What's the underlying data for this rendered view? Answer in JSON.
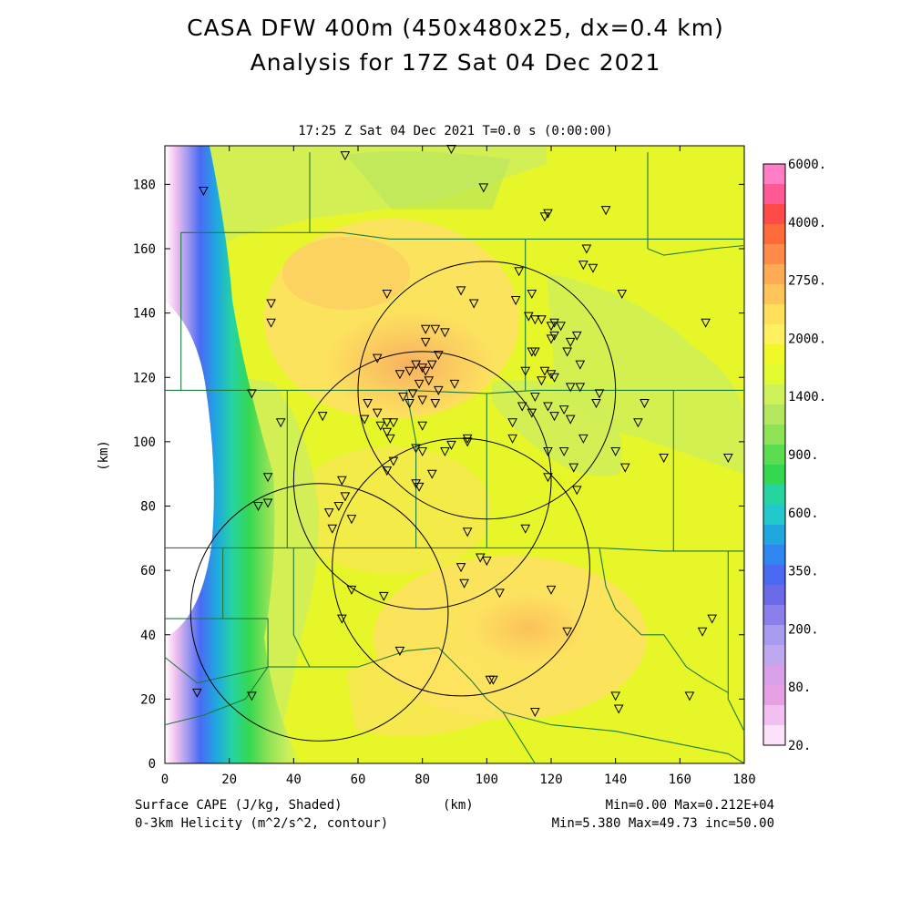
{
  "title_line1": "CASA DFW 400m (450x480x25, dx=0.4 km)",
  "title_line2": "Analysis for 17Z Sat 04 Dec 2021",
  "subtitle": "17:25 Z Sat 04 Dec 2021   T=0.0 s (0:00:00)",
  "footer": {
    "left1": "Surface CAPE (J/kg, Shaded)",
    "left2": "0-3km Helicity (m^2/s^2, contour)",
    "center": "(km)",
    "right1": "Min=0.00 Max=0.212E+04",
    "right2": "Min=5.380 Max=49.73 inc=50.00"
  },
  "chart_data": {
    "type": "heatmap",
    "xlabel": "(km)",
    "ylabel": "(km)",
    "xlim": [
      0,
      180
    ],
    "ylim": [
      0,
      192
    ],
    "x_ticks": [
      "0",
      "20",
      "40",
      "60",
      "80",
      "100",
      "120",
      "140",
      "160",
      "180"
    ],
    "y_ticks": [
      "0",
      "20",
      "40",
      "60",
      "80",
      "100",
      "120",
      "140",
      "160",
      "180"
    ],
    "colorbar": {
      "labels": [
        "6000.",
        "4000.",
        "2750.",
        "2000.",
        "1400.",
        "900.",
        "600.",
        "350.",
        "200.",
        "80.",
        "20."
      ],
      "colors": [
        "#ff7ec6",
        "#ff5a96",
        "#ff4a4a",
        "#ff6a3a",
        "#ff8a4a",
        "#ffab55",
        "#ffc55a",
        "#ffe05a",
        "#fff060",
        "#f0f828",
        "#e2fa30",
        "#cdf25a",
        "#b4e660",
        "#8de255",
        "#5cdc50",
        "#34d850",
        "#26d4a0",
        "#22c8cc",
        "#1fa8e0",
        "#2f86f0",
        "#4a6af4",
        "#6a6ae8",
        "#8a80ec",
        "#a89cf0",
        "#c0a8f0",
        "#d8a0e8",
        "#e8a0e4",
        "#f2c0f0",
        "#fde0fa"
      ]
    },
    "radar_circles_km": [
      {
        "cx": 100,
        "cy": 116,
        "r": 40
      },
      {
        "cx": 80,
        "cy": 88,
        "r": 40
      },
      {
        "cx": 92,
        "cy": 61,
        "r": 40
      },
      {
        "cx": 48,
        "cy": 47,
        "r": 40
      }
    ],
    "stations_km": [
      [
        12,
        178
      ],
      [
        56,
        189
      ],
      [
        89,
        191
      ],
      [
        99,
        179
      ],
      [
        118,
        170
      ],
      [
        119,
        171
      ],
      [
        137,
        172
      ],
      [
        131,
        160
      ],
      [
        130,
        155
      ],
      [
        133,
        154
      ],
      [
        142,
        146
      ],
      [
        33,
        143
      ],
      [
        33,
        137
      ],
      [
        69,
        146
      ],
      [
        92,
        147
      ],
      [
        96,
        143
      ],
      [
        110,
        153
      ],
      [
        114,
        146
      ],
      [
        109,
        144
      ],
      [
        113,
        139
      ],
      [
        115,
        138
      ],
      [
        117,
        138
      ],
      [
        120,
        136
      ],
      [
        121,
        137
      ],
      [
        120,
        132
      ],
      [
        121,
        133
      ],
      [
        114,
        128
      ],
      [
        115,
        128
      ],
      [
        123,
        136
      ],
      [
        126,
        131
      ],
      [
        125,
        128
      ],
      [
        128,
        133
      ],
      [
        129,
        124
      ],
      [
        129,
        117
      ],
      [
        120,
        121
      ],
      [
        118,
        122
      ],
      [
        121,
        120
      ],
      [
        117,
        119
      ],
      [
        126,
        117
      ],
      [
        112,
        122
      ],
      [
        81,
        135
      ],
      [
        84,
        135
      ],
      [
        87,
        134
      ],
      [
        81,
        131
      ],
      [
        85,
        127
      ],
      [
        80,
        123
      ],
      [
        81,
        122
      ],
      [
        83,
        124
      ],
      [
        78,
        124
      ],
      [
        76,
        122
      ],
      [
        79,
        118
      ],
      [
        82,
        119
      ],
      [
        77,
        115
      ],
      [
        73,
        121
      ],
      [
        66,
        126
      ],
      [
        63,
        112
      ],
      [
        62,
        107
      ],
      [
        66,
        109
      ],
      [
        67,
        105
      ],
      [
        69,
        106
      ],
      [
        71,
        106
      ],
      [
        69,
        103
      ],
      [
        70,
        101
      ],
      [
        74,
        114
      ],
      [
        76,
        112
      ],
      [
        80,
        113
      ],
      [
        85,
        116
      ],
      [
        84,
        112
      ],
      [
        90,
        118
      ],
      [
        80,
        105
      ],
      [
        49,
        108
      ],
      [
        27,
        115
      ],
      [
        36,
        106
      ],
      [
        69,
        91
      ],
      [
        71,
        94
      ],
      [
        78,
        98
      ],
      [
        80,
        97
      ],
      [
        87,
        97
      ],
      [
        89,
        99
      ],
      [
        94,
        101
      ],
      [
        94,
        100
      ],
      [
        108,
        106
      ],
      [
        108,
        101
      ],
      [
        111,
        111
      ],
      [
        114,
        109
      ],
      [
        115,
        114
      ],
      [
        119,
        111
      ],
      [
        121,
        108
      ],
      [
        124,
        110
      ],
      [
        126,
        107
      ],
      [
        134,
        112
      ],
      [
        135,
        115
      ],
      [
        124,
        97
      ],
      [
        130,
        101
      ],
      [
        127,
        92
      ],
      [
        128,
        85
      ],
      [
        119,
        97
      ],
      [
        119,
        89
      ],
      [
        140,
        97
      ],
      [
        143,
        92
      ],
      [
        147,
        106
      ],
      [
        149,
        112
      ],
      [
        168,
        137
      ],
      [
        155,
        95
      ],
      [
        175,
        95
      ],
      [
        78,
        87
      ],
      [
        79,
        86
      ],
      [
        83,
        90
      ],
      [
        55,
        88
      ],
      [
        56,
        83
      ],
      [
        54,
        80
      ],
      [
        51,
        78
      ],
      [
        52,
        73
      ],
      [
        58,
        76
      ],
      [
        32,
        89
      ],
      [
        32,
        81
      ],
      [
        29,
        80
      ],
      [
        68,
        52
      ],
      [
        55,
        45
      ],
      [
        58,
        54
      ],
      [
        73,
        35
      ],
      [
        92,
        61
      ],
      [
        93,
        56
      ],
      [
        94,
        72
      ],
      [
        98,
        64
      ],
      [
        100,
        63
      ],
      [
        104,
        53
      ],
      [
        112,
        73
      ],
      [
        120,
        54
      ],
      [
        125,
        41
      ],
      [
        102,
        26
      ],
      [
        101,
        26
      ],
      [
        115,
        16
      ],
      [
        140,
        21
      ],
      [
        141,
        17
      ],
      [
        163,
        21
      ],
      [
        167,
        41
      ],
      [
        170,
        45
      ],
      [
        10,
        22
      ],
      [
        27,
        21
      ]
    ],
    "boundaries_km": [
      [
        [
          0,
          67
        ],
        [
          18,
          67
        ],
        [
          38,
          67
        ],
        [
          40,
          67
        ],
        [
          80,
          67
        ],
        [
          90,
          67
        ],
        [
          100,
          67
        ],
        [
          110,
          67
        ],
        [
          120,
          67
        ],
        [
          135,
          67
        ],
        [
          155,
          66
        ],
        [
          175,
          66
        ],
        [
          180,
          66
        ]
      ],
      [
        [
          38,
          67
        ],
        [
          38,
          116
        ],
        [
          42,
          116
        ],
        [
          55,
          116
        ],
        [
          75,
          116
        ],
        [
          100,
          115
        ],
        [
          115,
          116
        ],
        [
          130,
          116
        ],
        [
          145,
          116
        ],
        [
          158,
          116
        ],
        [
          180,
          116
        ]
      ],
      [
        [
          18,
          67
        ],
        [
          18,
          45
        ]
      ],
      [
        [
          0,
          45
        ],
        [
          18,
          45
        ],
        [
          32,
          45
        ],
        [
          32,
          30
        ],
        [
          45,
          30
        ],
        [
          60,
          30
        ],
        [
          75,
          35
        ],
        [
          85,
          36
        ]
      ],
      [
        [
          0,
          116
        ],
        [
          18,
          116
        ],
        [
          30,
          116
        ],
        [
          38,
          116
        ]
      ],
      [
        [
          5,
          116
        ],
        [
          5,
          165
        ],
        [
          15,
          165
        ],
        [
          28,
          165
        ],
        [
          45,
          165
        ],
        [
          55,
          165
        ]
      ],
      [
        [
          45,
          165
        ],
        [
          45,
          190
        ]
      ],
      [
        [
          55,
          165
        ],
        [
          70,
          163
        ],
        [
          95,
          163
        ],
        [
          105,
          163
        ],
        [
          112,
          163
        ]
      ],
      [
        [
          112,
          163
        ],
        [
          112,
          150
        ],
        [
          112,
          116
        ]
      ],
      [
        [
          100,
          115
        ],
        [
          100,
          103
        ],
        [
          100,
          67
        ]
      ],
      [
        [
          75,
          116
        ],
        [
          78,
          100
        ],
        [
          78,
          67
        ]
      ],
      [
        [
          150,
          160
        ],
        [
          150,
          190
        ]
      ],
      [
        [
          112,
          163
        ],
        [
          150,
          163
        ],
        [
          160,
          163
        ],
        [
          180,
          163
        ]
      ],
      [
        [
          150,
          160
        ],
        [
          155,
          158
        ],
        [
          170,
          160
        ],
        [
          180,
          161
        ]
      ],
      [
        [
          158,
          116
        ],
        [
          158,
          88
        ],
        [
          158,
          66
        ]
      ],
      [
        [
          175,
          66
        ],
        [
          175,
          20
        ],
        [
          180,
          10
        ]
      ],
      [
        [
          135,
          67
        ],
        [
          137,
          55
        ],
        [
          140,
          48
        ],
        [
          148,
          40
        ],
        [
          155,
          40
        ],
        [
          162,
          30
        ],
        [
          168,
          26
        ],
        [
          175,
          22
        ]
      ],
      [
        [
          85,
          36
        ],
        [
          95,
          26
        ],
        [
          100,
          20
        ],
        [
          105,
          16
        ],
        [
          120,
          12
        ],
        [
          140,
          10
        ],
        [
          160,
          6
        ],
        [
          175,
          3
        ],
        [
          180,
          0
        ]
      ],
      [
        [
          40,
          67
        ],
        [
          40,
          60
        ],
        [
          40,
          40
        ],
        [
          45,
          30
        ]
      ],
      [
        [
          0,
          33
        ],
        [
          10,
          25
        ],
        [
          32,
          30
        ]
      ],
      [
        [
          0,
          12
        ],
        [
          12,
          15
        ],
        [
          25,
          20
        ],
        [
          32,
          30
        ]
      ],
      [
        [
          105,
          16
        ],
        [
          110,
          8
        ],
        [
          115,
          0
        ]
      ]
    ]
  }
}
